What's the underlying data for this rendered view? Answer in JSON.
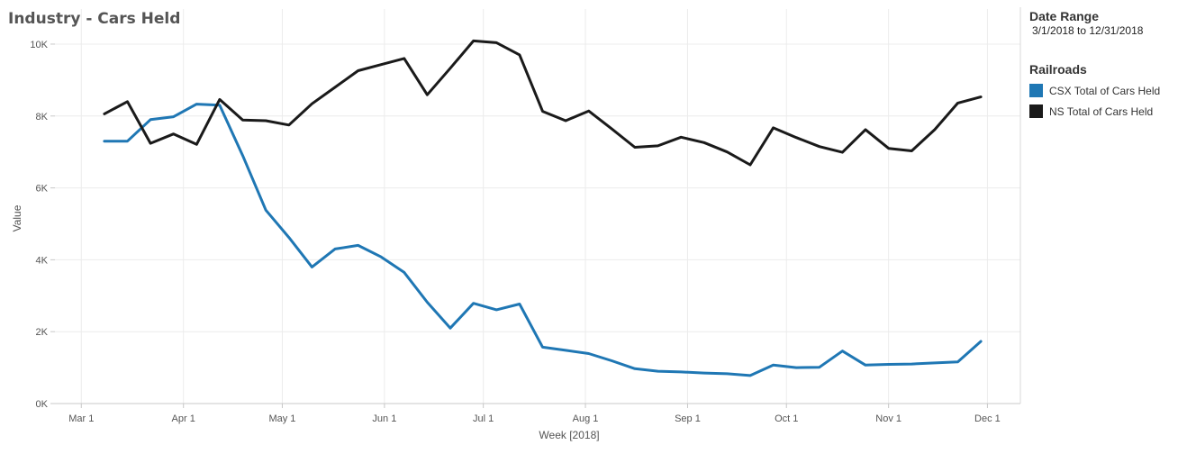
{
  "title": "Industry - Cars Held",
  "filter": {
    "title": "Date Range",
    "value": "3/1/2018 to 12/31/2018"
  },
  "legend": {
    "title": "Railroads",
    "items": [
      {
        "label": "CSX Total of Cars Held",
        "color": "#1f77b4"
      },
      {
        "label": "NS Total of Cars Held",
        "color": "#1a1a1a"
      }
    ]
  },
  "chart_data": {
    "type": "line",
    "xlabel": "Week [2018]",
    "ylabel": "Value",
    "x_ticks": [
      "Mar 1",
      "Apr 1",
      "May 1",
      "Jun 1",
      "Jul 1",
      "Aug 1",
      "Sep 1",
      "Oct 1",
      "Nov 1",
      "Dec 1"
    ],
    "x_tick_dates": [
      "2018-03-01",
      "2018-04-01",
      "2018-05-01",
      "2018-06-01",
      "2018-07-01",
      "2018-08-01",
      "2018-09-01",
      "2018-10-01",
      "2018-11-01",
      "2018-12-01"
    ],
    "xlim": [
      "2018-02-21",
      "2018-12-11"
    ],
    "y_ticks": [
      0,
      2000,
      4000,
      6000,
      8000,
      10000
    ],
    "y_tick_labels": [
      "0K",
      "2K",
      "4K",
      "6K",
      "8K",
      "10K"
    ],
    "ylim": [
      0,
      10300
    ],
    "grid": true,
    "legend_position": "right",
    "series": [
      {
        "name": "CSX Total of Cars Held",
        "color": "#1f77b4",
        "points": [
          [
            "2018-03-08",
            7300
          ],
          [
            "2018-03-15",
            7300
          ],
          [
            "2018-03-22",
            7900
          ],
          [
            "2018-03-29",
            7980
          ],
          [
            "2018-04-05",
            8330
          ],
          [
            "2018-04-12",
            8300
          ],
          [
            "2018-04-19",
            6900
          ],
          [
            "2018-04-26",
            5380
          ],
          [
            "2018-05-03",
            4620
          ],
          [
            "2018-05-10",
            3800
          ],
          [
            "2018-05-17",
            4300
          ],
          [
            "2018-05-24",
            4400
          ],
          [
            "2018-05-31",
            4080
          ],
          [
            "2018-06-07",
            3650
          ],
          [
            "2018-06-14",
            2820
          ],
          [
            "2018-06-21",
            2100
          ],
          [
            "2018-06-28",
            2790
          ],
          [
            "2018-07-05",
            2610
          ],
          [
            "2018-07-12",
            2770
          ],
          [
            "2018-07-19",
            1570
          ],
          [
            "2018-07-26",
            1480
          ],
          [
            "2018-08-02",
            1390
          ],
          [
            "2018-08-09",
            1190
          ],
          [
            "2018-08-16",
            970
          ],
          [
            "2018-08-23",
            900
          ],
          [
            "2018-08-30",
            880
          ],
          [
            "2018-09-06",
            850
          ],
          [
            "2018-09-13",
            830
          ],
          [
            "2018-09-20",
            780
          ],
          [
            "2018-09-27",
            1070
          ],
          [
            "2018-10-04",
            1000
          ],
          [
            "2018-10-11",
            1010
          ],
          [
            "2018-10-18",
            1460
          ],
          [
            "2018-10-25",
            1070
          ],
          [
            "2018-11-01",
            1090
          ],
          [
            "2018-11-08",
            1100
          ],
          [
            "2018-11-15",
            1130
          ],
          [
            "2018-11-22",
            1160
          ],
          [
            "2018-11-29",
            1730
          ]
        ]
      },
      {
        "name": "NS Total of Cars Held",
        "color": "#1a1a1a",
        "points": [
          [
            "2018-03-08",
            8060
          ],
          [
            "2018-03-15",
            8400
          ],
          [
            "2018-03-22",
            7240
          ],
          [
            "2018-03-29",
            7500
          ],
          [
            "2018-04-05",
            7210
          ],
          [
            "2018-04-12",
            8460
          ],
          [
            "2018-04-19",
            7890
          ],
          [
            "2018-04-26",
            7870
          ],
          [
            "2018-05-03",
            7750
          ],
          [
            "2018-05-10",
            8340
          ],
          [
            "2018-05-17",
            8800
          ],
          [
            "2018-05-24",
            9260
          ],
          [
            "2018-05-31",
            9430
          ],
          [
            "2018-06-07",
            9600
          ],
          [
            "2018-06-14",
            8590
          ],
          [
            "2018-06-21",
            9330
          ],
          [
            "2018-06-28",
            10090
          ],
          [
            "2018-07-05",
            10040
          ],
          [
            "2018-07-12",
            9700
          ],
          [
            "2018-07-19",
            8130
          ],
          [
            "2018-07-26",
            7870
          ],
          [
            "2018-08-02",
            8140
          ],
          [
            "2018-08-09",
            7640
          ],
          [
            "2018-08-16",
            7130
          ],
          [
            "2018-08-23",
            7170
          ],
          [
            "2018-08-30",
            7410
          ],
          [
            "2018-09-06",
            7260
          ],
          [
            "2018-09-13",
            7000
          ],
          [
            "2018-09-20",
            6640
          ],
          [
            "2018-09-27",
            7670
          ],
          [
            "2018-10-04",
            7400
          ],
          [
            "2018-10-11",
            7150
          ],
          [
            "2018-10-18",
            6990
          ],
          [
            "2018-10-25",
            7620
          ],
          [
            "2018-11-01",
            7100
          ],
          [
            "2018-11-08",
            7030
          ],
          [
            "2018-11-15",
            7620
          ],
          [
            "2018-11-22",
            8360
          ],
          [
            "2018-11-29",
            8530
          ]
        ]
      }
    ]
  }
}
